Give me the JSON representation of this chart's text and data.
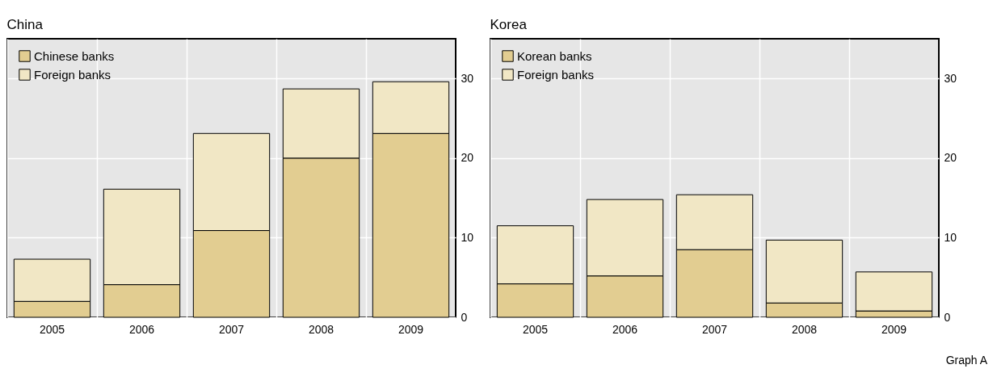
{
  "chart_data": [
    {
      "type": "bar",
      "title": "China",
      "categories": [
        "2005",
        "2006",
        "2007",
        "2008",
        "2009"
      ],
      "stacked": true,
      "ylim": [
        0,
        35
      ],
      "yticks": [
        0,
        10,
        20,
        30
      ],
      "grid": true,
      "legend": "top left",
      "series": [
        {
          "name": "Chinese banks",
          "color": "#e2cd91",
          "values": [
            2.0,
            4.1,
            10.9,
            20.0,
            23.1
          ]
        },
        {
          "name": "Foreign banks",
          "color": "#f1e7c5",
          "values": [
            5.3,
            12.0,
            12.2,
            8.7,
            6.5
          ]
        }
      ]
    },
    {
      "type": "bar",
      "title": "Korea",
      "categories": [
        "2005",
        "2006",
        "2007",
        "2008",
        "2009"
      ],
      "stacked": true,
      "ylim": [
        0,
        35
      ],
      "yticks": [
        0,
        10,
        20,
        30
      ],
      "grid": true,
      "legend": "top left",
      "annotations": [
        "Graph A"
      ],
      "series": [
        {
          "name": "Korean banks",
          "color": "#e2cd91",
          "values": [
            4.2,
            5.2,
            8.5,
            1.8,
            0.8
          ]
        },
        {
          "name": "Foreign banks",
          "color": "#f1e7c5",
          "values": [
            7.3,
            9.6,
            6.9,
            7.9,
            4.9
          ]
        }
      ]
    }
  ]
}
